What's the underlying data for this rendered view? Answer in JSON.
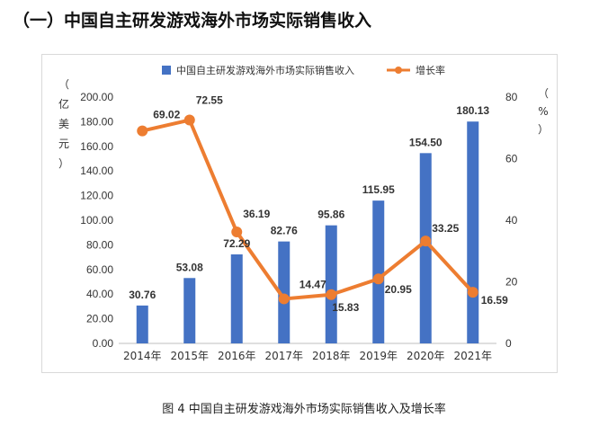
{
  "heading": "（一）中国自主研发游戏海外市场实际销售收入",
  "caption": "图 4 中国自主研发游戏海外市场实际销售收入及增长率",
  "chart_data": {
    "type": "bar+line",
    "categories": [
      "2014年",
      "2015年",
      "2016年",
      "2017年",
      "2018年",
      "2019年",
      "2020年",
      "2021年"
    ],
    "series": [
      {
        "name": "中国自主研发游戏海外市场实际销售收入",
        "type": "bar",
        "axis": "left",
        "values": [
          30.76,
          53.08,
          72.29,
          82.76,
          95.86,
          115.95,
          154.5,
          180.13
        ],
        "labels": [
          "30.76",
          "53.08",
          "72.29",
          "82.76",
          "95.86",
          "115.95",
          "154.50",
          "180.13"
        ],
        "color": "#4472C4"
      },
      {
        "name": "增长率",
        "type": "line",
        "axis": "right",
        "values": [
          69.02,
          72.55,
          36.19,
          14.47,
          15.83,
          20.95,
          33.25,
          16.59
        ],
        "labels": [
          "69.02",
          "72.55",
          "36.19",
          "14.47",
          "15.83",
          "20.95",
          "33.25",
          "16.59"
        ],
        "color": "#ED7D31"
      }
    ],
    "y_left": {
      "label_chars": [
        "（",
        "亿",
        "美",
        "元",
        "）"
      ],
      "ticks": [
        "0.00",
        "20.00",
        "40.00",
        "60.00",
        "80.00",
        "100.00",
        "120.00",
        "140.00",
        "160.00",
        "180.00",
        "200.00"
      ],
      "range": [
        0,
        200
      ]
    },
    "y_right": {
      "label_chars": [
        "（",
        "%",
        "）"
      ],
      "ticks": [
        "0",
        "20",
        "40",
        "60",
        "80"
      ],
      "range": [
        0,
        80
      ]
    },
    "legend": "top"
  }
}
